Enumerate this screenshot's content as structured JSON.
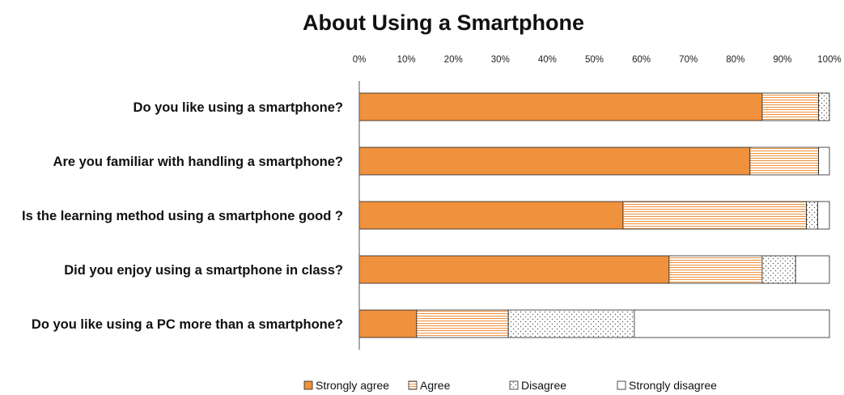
{
  "colors": {
    "strongly_agree": "#f0913d",
    "agree_stripe": "#f0913d",
    "outline": "#222222"
  },
  "chart_data": {
    "type": "bar",
    "orientation": "horizontal-stacked-100",
    "title": "About Using a Smartphone",
    "xlim": [
      0,
      100
    ],
    "x_ticks": [
      "0%",
      "10%",
      "20%",
      "30%",
      "40%",
      "50%",
      "60%",
      "70%",
      "80%",
      "90%",
      "100%"
    ],
    "x_axis_position": "top",
    "grid": false,
    "legend_position": "bottom",
    "categories": [
      "Do you like using a smartphone?",
      "Are you familiar with handling a smartphone?",
      "Is the learning method using a smartphone good ?",
      "Did you enjoy using a smartphone in class?",
      "Do you like using a PC  more than a smartphone?"
    ],
    "series": [
      {
        "name": "Strongly agree",
        "values": [
          85.7,
          83.1,
          56.1,
          65.9,
          12.2
        ]
      },
      {
        "name": "Agree",
        "values": [
          12.0,
          14.6,
          39.0,
          19.8,
          19.5
        ]
      },
      {
        "name": "Disagree",
        "values": [
          2.3,
          0.0,
          2.4,
          7.1,
          26.8
        ]
      },
      {
        "name": "Strongly disagree",
        "values": [
          0.0,
          2.3,
          2.5,
          7.2,
          41.5
        ]
      }
    ]
  }
}
